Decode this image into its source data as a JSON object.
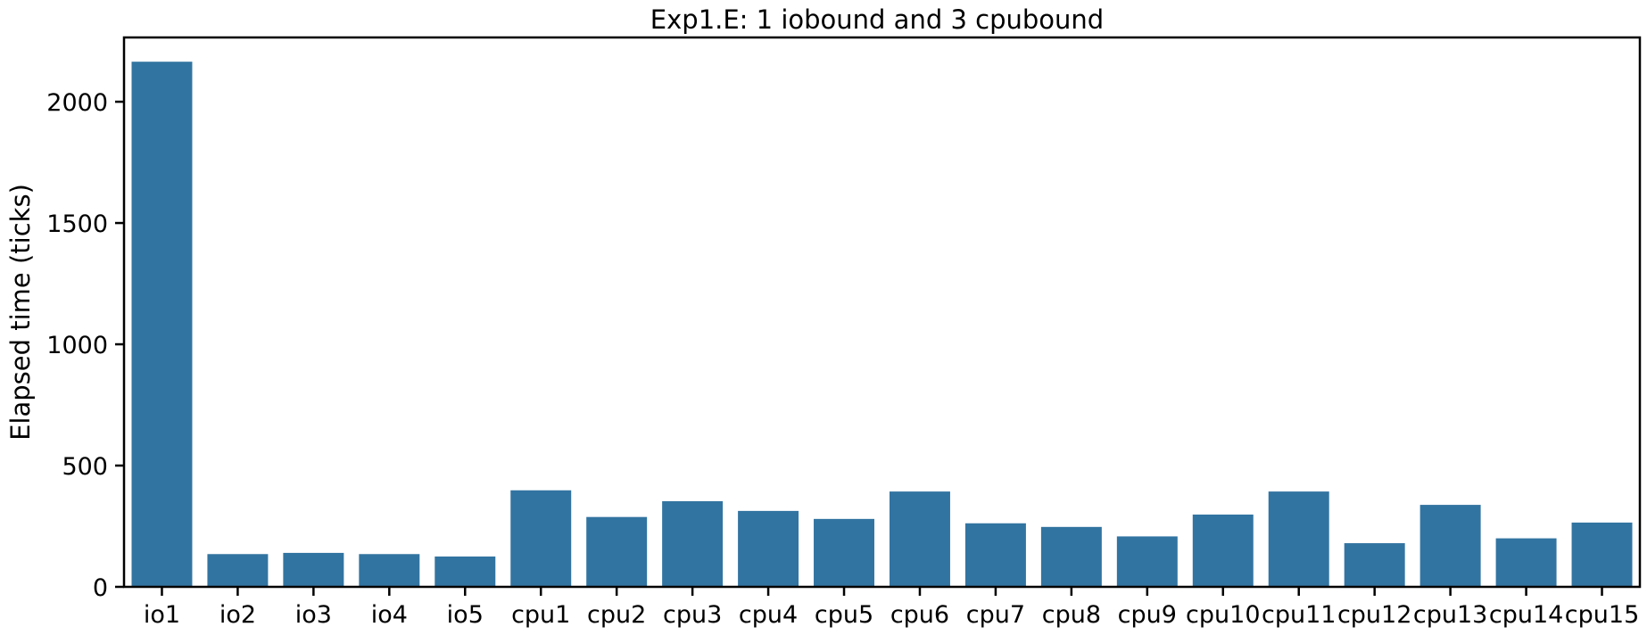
{
  "chart_data": {
    "type": "bar",
    "title": "Exp1.E: 1 iobound and 3 cpubound",
    "xlabel": "",
    "ylabel": "Elapsed time (ticks)",
    "categories": [
      "io1",
      "io2",
      "io3",
      "io4",
      "io5",
      "cpu1",
      "cpu2",
      "cpu3",
      "cpu4",
      "cpu5",
      "cpu6",
      "cpu7",
      "cpu8",
      "cpu9",
      "cpu10",
      "cpu11",
      "cpu12",
      "cpu13",
      "cpu14",
      "cpu15"
    ],
    "values": [
      2165,
      135,
      140,
      135,
      125,
      398,
      288,
      353,
      313,
      280,
      393,
      262,
      247,
      208,
      298,
      393,
      180,
      338,
      200,
      265
    ],
    "ylim": [
      0,
      2265
    ],
    "yticks": [
      0,
      500,
      1000,
      1500,
      2000
    ],
    "bar_color": "#3274a1",
    "grid": false,
    "legend": "none"
  }
}
